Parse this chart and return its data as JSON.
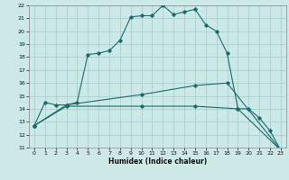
{
  "xlabel": "Humidex (Indice chaleur)",
  "bg_color": "#cce9e8",
  "grid_color": "#aacfcf",
  "line_color": "#1a6b6b",
  "xlim": [
    -0.5,
    23.5
  ],
  "ylim": [
    11,
    22
  ],
  "xticks": [
    0,
    1,
    2,
    3,
    4,
    5,
    6,
    7,
    8,
    9,
    10,
    11,
    12,
    13,
    14,
    15,
    16,
    17,
    18,
    19,
    20,
    21,
    22,
    23
  ],
  "yticks": [
    11,
    12,
    13,
    14,
    15,
    16,
    17,
    18,
    19,
    20,
    21,
    22
  ],
  "series1_x": [
    0,
    1,
    2,
    3,
    4,
    5,
    6,
    7,
    8,
    9,
    10,
    11,
    12,
    13,
    14,
    15,
    16,
    17,
    18,
    19,
    20,
    21,
    22,
    23
  ],
  "series1_y": [
    12.7,
    14.5,
    14.3,
    14.3,
    14.5,
    18.2,
    18.3,
    18.5,
    19.3,
    21.1,
    21.2,
    21.2,
    22.0,
    21.3,
    21.5,
    21.7,
    20.5,
    20.0,
    18.3,
    14.0,
    14.0,
    13.3,
    12.3,
    10.8
  ],
  "series2_x": [
    0,
    3,
    10,
    15,
    18,
    23
  ],
  "series2_y": [
    12.7,
    14.3,
    15.1,
    15.8,
    16.0,
    10.8
  ],
  "series3_x": [
    0,
    3,
    10,
    15,
    19,
    23
  ],
  "series3_y": [
    12.7,
    14.2,
    14.2,
    14.2,
    14.0,
    10.8
  ]
}
